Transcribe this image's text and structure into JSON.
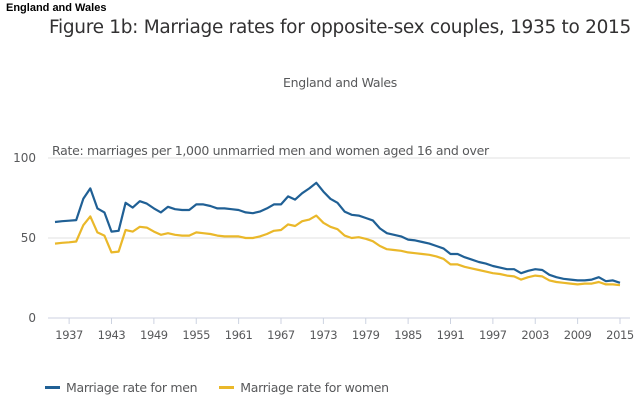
{
  "page_header": "England and Wales",
  "chart_data": {
    "type": "line",
    "title": "Figure 1b: Marriage rates for opposite-sex couples, 1935 to 2015",
    "subtitle": "England and Wales",
    "ylabel": "Rate: marriages per 1,000 unmarried men and women aged 16 and over",
    "xlabel": "",
    "ylim": [
      0,
      100
    ],
    "xlim": [
      1935,
      2015
    ],
    "yticks": [
      0,
      50,
      100
    ],
    "xticks": [
      1937,
      1943,
      1949,
      1955,
      1961,
      1967,
      1973,
      1979,
      1985,
      1991,
      1997,
      2003,
      2009,
      2015
    ],
    "grid": true,
    "legend_position": "bottom-left",
    "x": [
      1935,
      1936,
      1937,
      1938,
      1939,
      1940,
      1941,
      1942,
      1943,
      1944,
      1945,
      1946,
      1947,
      1948,
      1949,
      1950,
      1951,
      1952,
      1953,
      1954,
      1955,
      1956,
      1957,
      1958,
      1959,
      1960,
      1961,
      1962,
      1963,
      1964,
      1965,
      1966,
      1967,
      1968,
      1969,
      1970,
      1971,
      1972,
      1973,
      1974,
      1975,
      1976,
      1977,
      1978,
      1979,
      1980,
      1981,
      1982,
      1983,
      1984,
      1985,
      1986,
      1987,
      1988,
      1989,
      1990,
      1991,
      1992,
      1993,
      1994,
      1995,
      1996,
      1997,
      1998,
      1999,
      2000,
      2001,
      2002,
      2003,
      2004,
      2005,
      2006,
      2007,
      2008,
      2009,
      2010,
      2011,
      2012,
      2013,
      2014,
      2015
    ],
    "series": [
      {
        "name": "Marriage rate for men",
        "color": "#206095",
        "values": [
          60.0,
          60.5,
          60.8,
          61.2,
          74.5,
          81.0,
          68.5,
          66.0,
          54.0,
          54.5,
          72.0,
          69.0,
          73.0,
          71.5,
          68.5,
          66.0,
          69.5,
          68.0,
          67.5,
          67.5,
          71.0,
          71.0,
          70.0,
          68.5,
          68.5,
          68.0,
          67.5,
          66.0,
          65.5,
          66.5,
          68.5,
          71.0,
          71.0,
          76.0,
          74.0,
          78.0,
          81.0,
          84.5,
          79.0,
          74.5,
          72.0,
          66.5,
          64.5,
          64.0,
          62.5,
          61.0,
          56.0,
          53.0,
          52.0,
          51.0,
          49.0,
          48.5,
          47.5,
          46.5,
          45.0,
          43.5,
          40.0,
          40.0,
          38.0,
          36.5,
          35.0,
          34.0,
          32.5,
          31.5,
          30.5,
          30.5,
          28.0,
          29.5,
          30.5,
          30.0,
          27.0,
          25.5,
          24.5,
          24.0,
          23.5,
          23.5,
          24.0,
          25.5,
          23.0,
          23.5,
          22.0
        ]
      },
      {
        "name": "Marriage rate for women",
        "color": "#EAB82A",
        "values": [
          46.5,
          47.0,
          47.3,
          47.8,
          58.0,
          63.5,
          53.5,
          51.5,
          41.0,
          41.5,
          55.0,
          54.0,
          57.0,
          56.5,
          54.0,
          52.0,
          53.0,
          52.0,
          51.5,
          51.5,
          53.5,
          53.0,
          52.5,
          51.5,
          51.0,
          51.0,
          51.0,
          50.0,
          50.0,
          51.0,
          52.5,
          54.5,
          55.0,
          58.5,
          57.5,
          60.5,
          61.5,
          64.0,
          59.5,
          57.0,
          55.5,
          51.5,
          50.0,
          50.5,
          49.5,
          48.0,
          45.0,
          43.0,
          42.5,
          42.0,
          41.0,
          40.5,
          40.0,
          39.5,
          38.5,
          37.0,
          33.5,
          33.5,
          32.0,
          31.0,
          30.0,
          29.0,
          28.0,
          27.5,
          26.5,
          26.0,
          24.0,
          25.5,
          26.5,
          26.0,
          23.5,
          22.5,
          22.0,
          21.5,
          21.0,
          21.5,
          21.5,
          22.5,
          21.0,
          21.0,
          20.5
        ]
      }
    ]
  }
}
